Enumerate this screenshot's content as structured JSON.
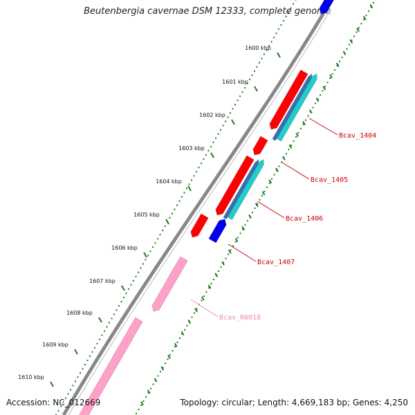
{
  "title": "Beutenbergia cavernae DSM 12333, complete genome",
  "accession_text": "Accession: NC_012669",
  "summary_text": "Topology: circular; Length: 4,669,183 bp; Genes: 4,250",
  "ticks": [
    "1600 kbp",
    "1601 kbp",
    "1602 kbp",
    "1603 kbp",
    "1604 kbp",
    "1605 kbp",
    "1606 kbp",
    "1607 kbp",
    "1608 kbp",
    "1609 kbp",
    "1610 kbp"
  ],
  "gene_labels": [
    {
      "text": "Bcav_1404",
      "color": "#cc0000"
    },
    {
      "text": "Bcav_1405",
      "color": "#cc0000"
    },
    {
      "text": "Bcav_1406",
      "color": "#cc0000"
    },
    {
      "text": "Bcav_1407",
      "color": "#cc0000"
    },
    {
      "text": "Bcav_R0018",
      "color": "#ee88bb"
    }
  ],
  "colors": {
    "backbone": "#888888",
    "tick_ring": "#1a7a1a",
    "cds_forward": "#ff0000",
    "cds_reverse": "#0000ee",
    "cog": "#22cccc",
    "rna": "#ffa0c8"
  }
}
